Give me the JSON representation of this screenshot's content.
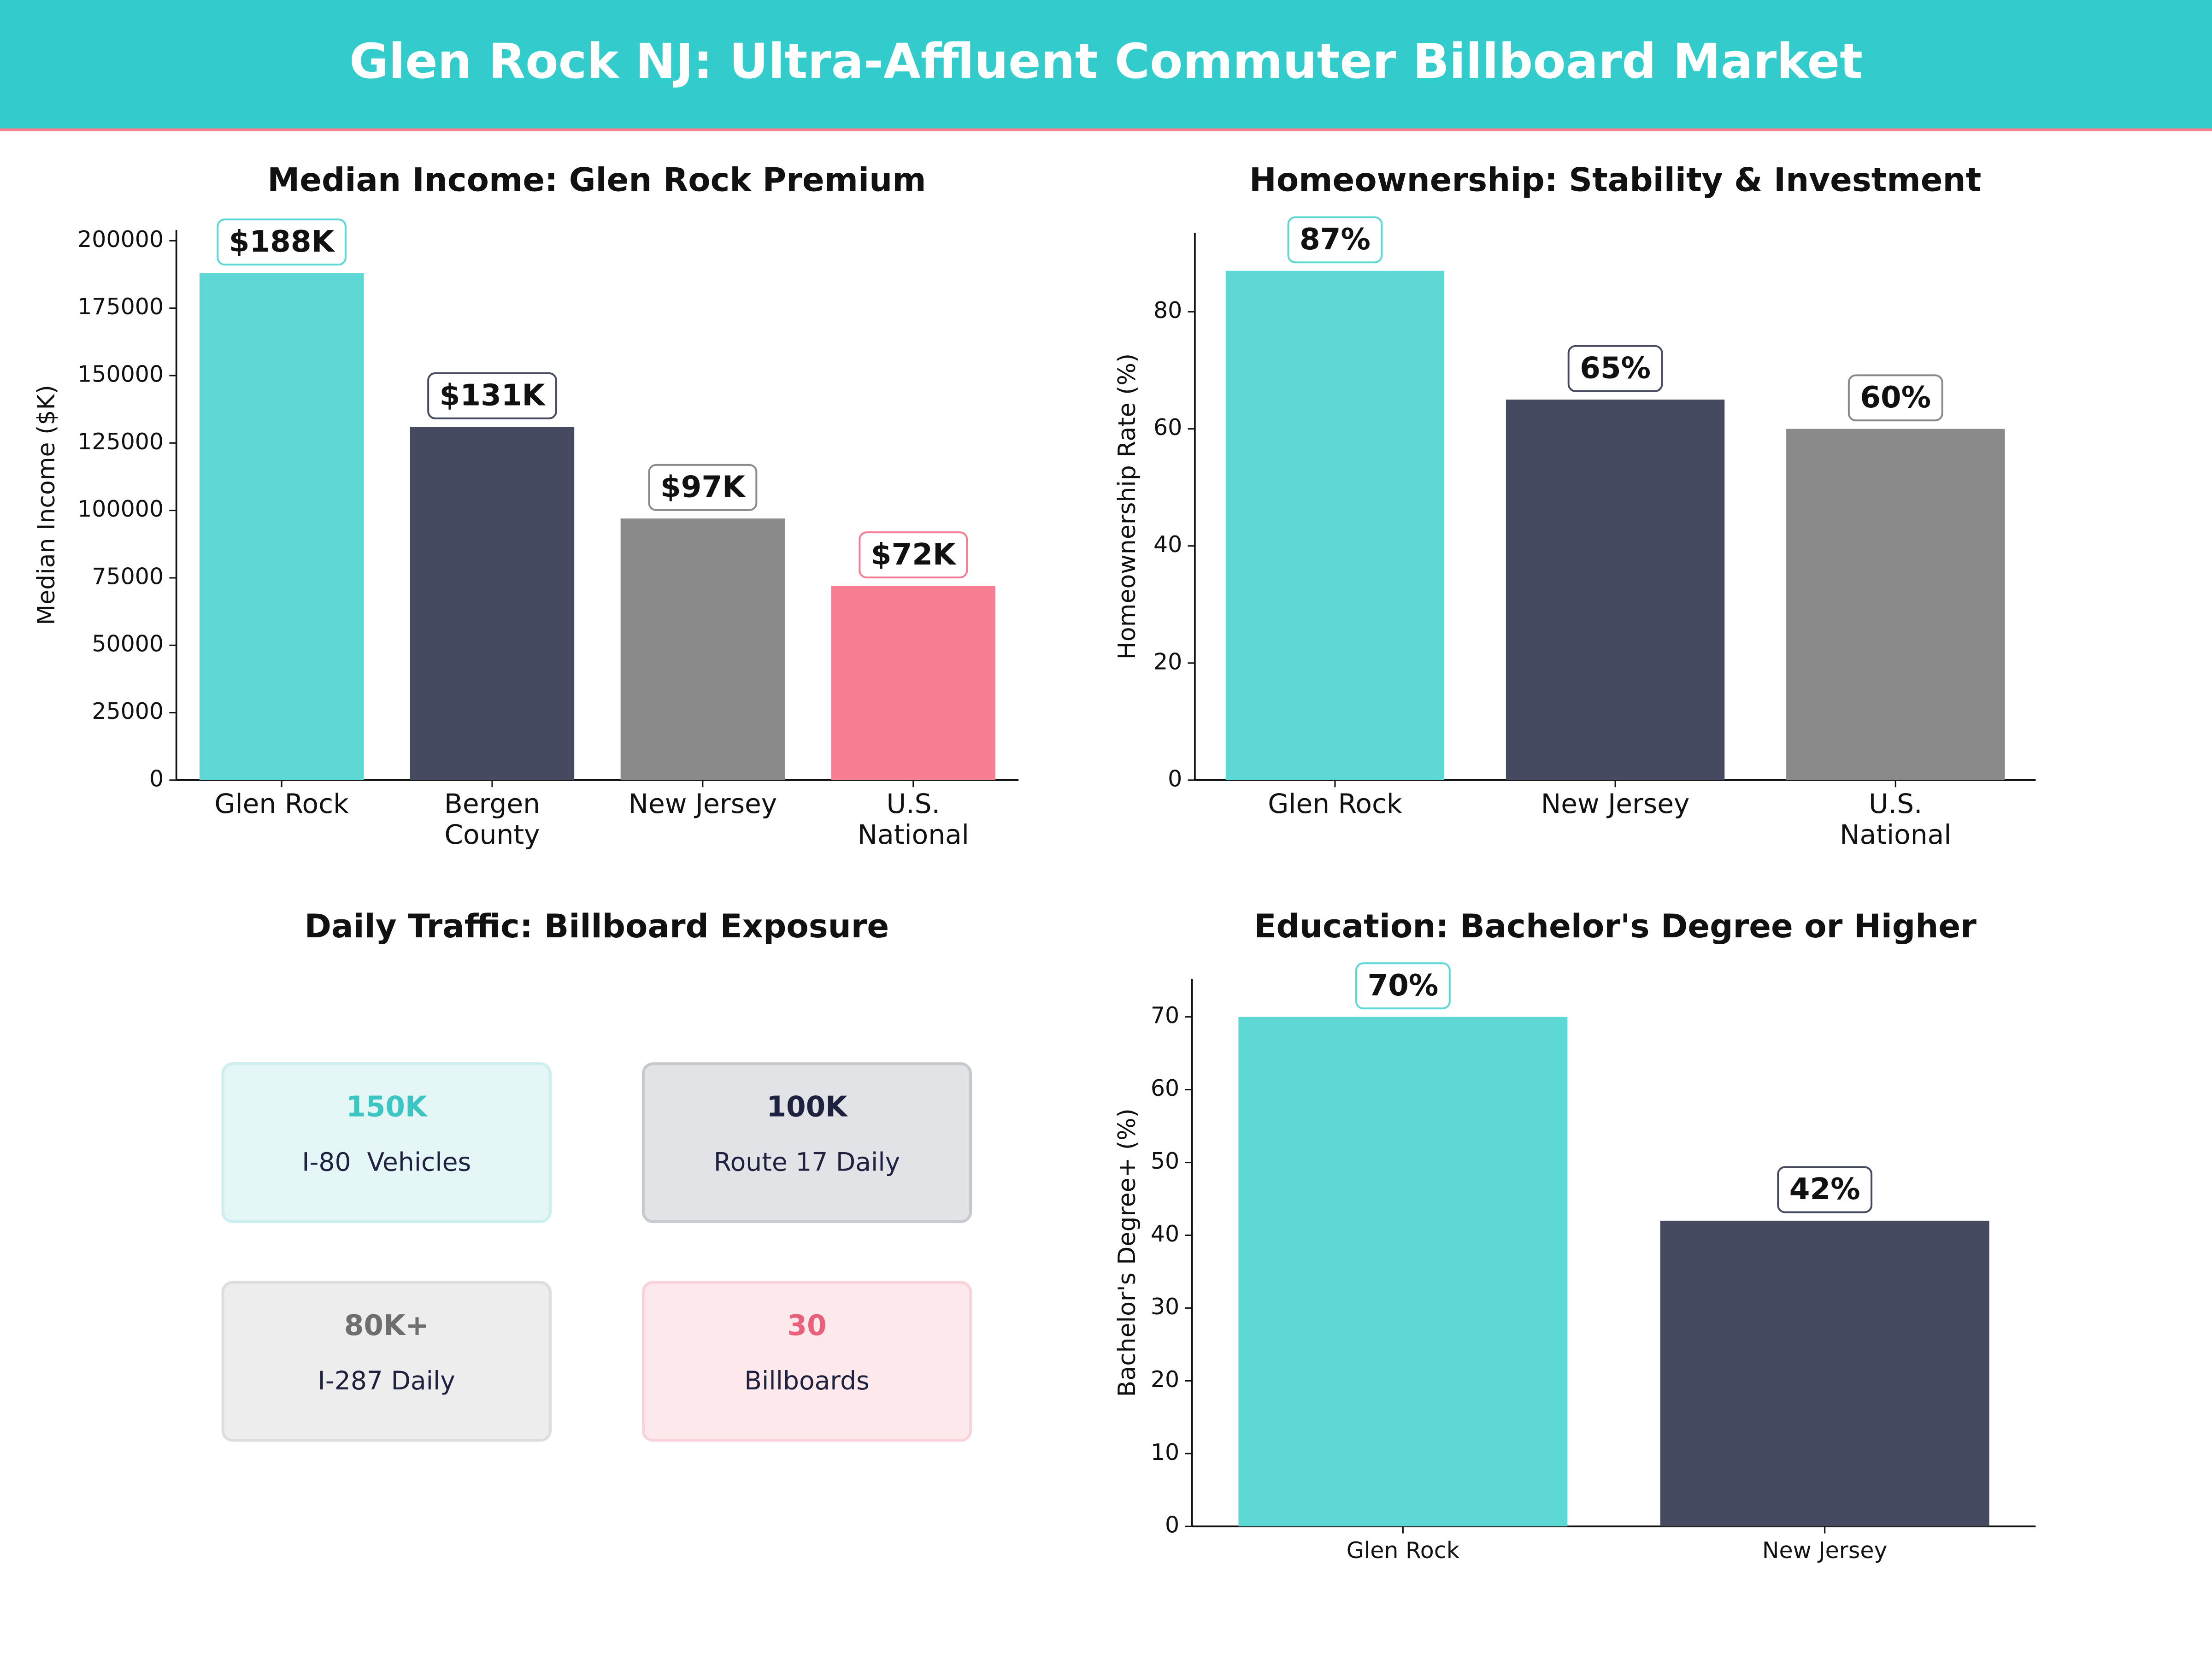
{
  "title": "Glen Rock NJ: Ultra-Affluent Commuter Billboard Market",
  "chart_data": [
    {
      "type": "bar",
      "title": "Median Income: Glen Rock Premium",
      "ylabel": "Median Income ($K)",
      "categories": [
        "Glen Rock",
        "Bergen\nCounty",
        "New Jersey",
        "U.S.\nNational"
      ],
      "values": [
        188000,
        131000,
        97000,
        72000
      ],
      "value_labels": [
        "$188K",
        "$131K",
        "$97K",
        "$72K"
      ],
      "colors": [
        "#5dd8d5",
        "#464a60",
        "#8a8a8a",
        "#f67e92"
      ],
      "ylim": [
        0,
        204000
      ],
      "yticks": [
        0,
        25000,
        50000,
        75000,
        100000,
        125000,
        150000,
        175000,
        200000
      ]
    },
    {
      "type": "bar",
      "title": "Homeownership: Stability & Investment",
      "ylabel": "Homeownership Rate (%)",
      "categories": [
        "Glen Rock",
        "New Jersey",
        "U.S.\nNational"
      ],
      "values": [
        87,
        65,
        60
      ],
      "value_labels": [
        "87%",
        "65%",
        "60%"
      ],
      "colors": [
        "#5dd8d5",
        "#464a60",
        "#8a8a8a"
      ],
      "ylim": [
        0,
        93.5
      ],
      "yticks": [
        0,
        20,
        40,
        60,
        80
      ]
    },
    {
      "type": "cards",
      "title": "Daily Traffic: Billboard Exposure",
      "cards": [
        {
          "value": "150K",
          "label": "I-80  Vehicles",
          "color": "#3cc6c3"
        },
        {
          "value": "100K",
          "label": "Route 17 Daily",
          "color": "#1e2140"
        },
        {
          "value": "80K+",
          "label": "I-287 Daily",
          "color": "#6e6e6e"
        },
        {
          "value": "30",
          "label": "Billboards",
          "color": "#e8607a"
        }
      ]
    },
    {
      "type": "bar",
      "title": "Education: Bachelor's Degree or Higher",
      "ylabel": "Bachelor's Degree+ (%)",
      "categories": [
        "Glen Rock",
        "New Jersey"
      ],
      "values": [
        70,
        42
      ],
      "value_labels": [
        "70%",
        "42%"
      ],
      "colors": [
        "#5dd8d5",
        "#464a60"
      ],
      "ylim": [
        0,
        75.2
      ],
      "yticks": [
        0,
        10,
        20,
        30,
        40,
        50,
        60,
        70
      ]
    }
  ]
}
